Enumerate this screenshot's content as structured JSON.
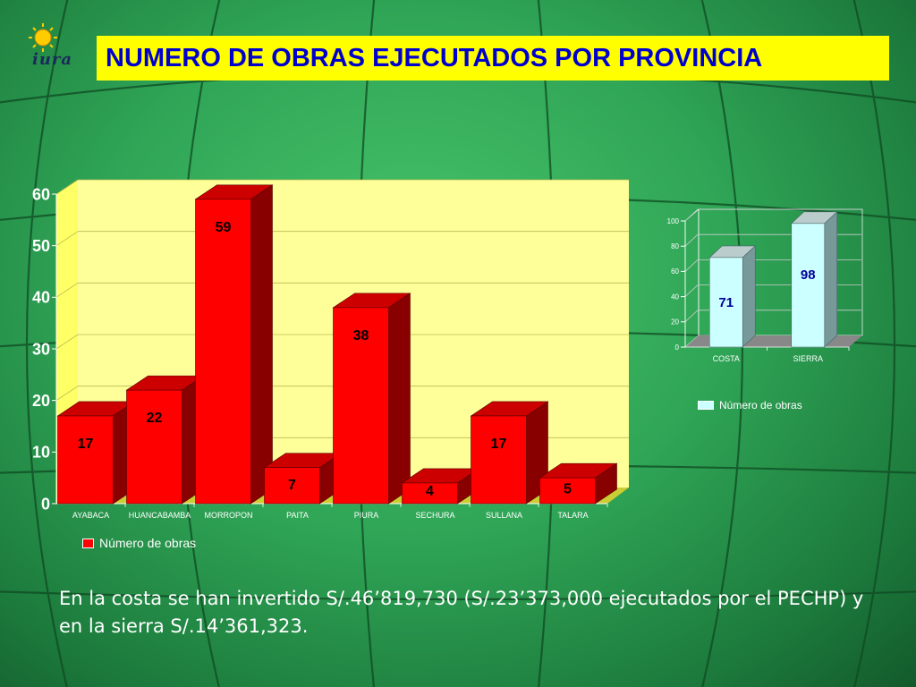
{
  "page": {
    "title": "NUMERO DE OBRAS EJECUTADOS POR PROVINCIA",
    "logo_text": "iura",
    "caption": "En la costa se han invertido S/.46’819,730 (S/.23’373,000 ejecutados por el PECHP) y en la sierra S/.14’361,323.",
    "colors": {
      "title_bg": "#ffff00",
      "title_text": "#0000cc",
      "plot_bg": "#ffff99"
    }
  },
  "chart_data": [
    {
      "type": "bar",
      "title": "",
      "categories": [
        "AYABACA",
        "HUANCABAMBA",
        "MORROPON",
        "PAITA",
        "PIURA",
        "SECHURA",
        "SULLANA",
        "TALARA"
      ],
      "series": [
        {
          "name": "Número de obras",
          "values": [
            17,
            22,
            59,
            7,
            38,
            4,
            17,
            5
          ],
          "color": "#ff0000"
        }
      ],
      "data_labels": [
        "17",
        "22",
        "59",
        "7",
        "38",
        "4",
        "17",
        "5"
      ],
      "xlabel": "",
      "ylabel": "",
      "ylim": [
        0,
        60
      ],
      "yticks": [
        "0",
        "10",
        "20",
        "30",
        "40",
        "50",
        "60"
      ],
      "grid": true,
      "legend": "bottom-left",
      "style": "3d"
    },
    {
      "type": "bar",
      "title": "",
      "categories": [
        "COSTA",
        "SIERRA"
      ],
      "series": [
        {
          "name": "Número de obras",
          "values": [
            71,
            98
          ],
          "color": "#ccffff"
        }
      ],
      "data_labels": [
        "71",
        "98"
      ],
      "xlabel": "",
      "ylabel": "",
      "ylim": [
        0,
        100
      ],
      "yticks": [
        "0",
        "20",
        "40",
        "60",
        "80",
        "100"
      ],
      "grid": true,
      "legend": "bottom",
      "style": "3d"
    }
  ]
}
